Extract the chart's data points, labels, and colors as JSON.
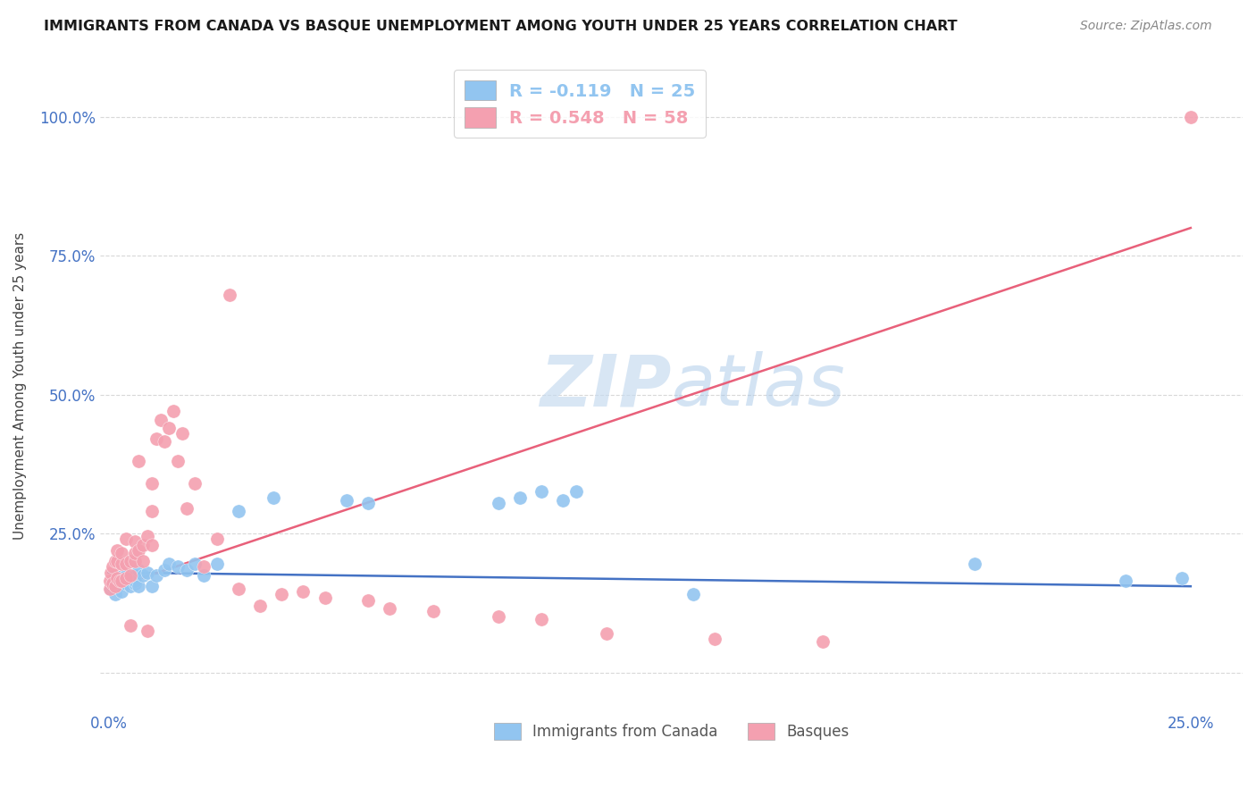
{
  "title": "IMMIGRANTS FROM CANADA VS BASQUE UNEMPLOYMENT AMONG YOUTH UNDER 25 YEARS CORRELATION CHART",
  "source": "Source: ZipAtlas.com",
  "ylabel": "Unemployment Among Youth under 25 years",
  "yticks": [
    0.0,
    0.25,
    0.5,
    0.75,
    1.0
  ],
  "ytick_labels": [
    "",
    "25.0%",
    "50.0%",
    "75.0%",
    "100.0%"
  ],
  "xticks": [
    0.0,
    0.05,
    0.1,
    0.15,
    0.2,
    0.25
  ],
  "xtick_labels": [
    "0.0%",
    "",
    "",
    "",
    "",
    "25.0%"
  ],
  "xlim": [
    -0.002,
    0.262
  ],
  "ylim": [
    -0.07,
    1.1
  ],
  "blue_color": "#92C5F0",
  "pink_color": "#F4A0B0",
  "blue_line_color": "#4472C4",
  "pink_line_color": "#E8607A",
  "watermark_color": "#C8DCF0",
  "background_color": "#ffffff",
  "grid_color": "#d8d8d8",
  "title_color": "#1a1a1a",
  "tick_label_color": "#4472c4",
  "ylabel_color": "#444444",
  "source_color": "#888888",
  "blue_scatter_x": [
    0.0005,
    0.001,
    0.001,
    0.0015,
    0.002,
    0.002,
    0.002,
    0.003,
    0.003,
    0.003,
    0.004,
    0.004,
    0.005,
    0.005,
    0.006,
    0.006,
    0.006,
    0.007,
    0.007,
    0.008,
    0.009,
    0.01,
    0.011,
    0.013,
    0.014,
    0.016,
    0.018,
    0.02,
    0.022,
    0.025,
    0.03,
    0.038,
    0.055,
    0.06,
    0.09,
    0.095,
    0.1,
    0.105,
    0.108,
    0.135,
    0.2,
    0.235,
    0.248
  ],
  "blue_scatter_y": [
    0.15,
    0.16,
    0.155,
    0.14,
    0.16,
    0.17,
    0.155,
    0.165,
    0.17,
    0.145,
    0.175,
    0.16,
    0.17,
    0.155,
    0.16,
    0.175,
    0.165,
    0.185,
    0.155,
    0.175,
    0.18,
    0.155,
    0.175,
    0.185,
    0.195,
    0.19,
    0.185,
    0.195,
    0.175,
    0.195,
    0.29,
    0.315,
    0.31,
    0.305,
    0.305,
    0.315,
    0.325,
    0.31,
    0.325,
    0.14,
    0.195,
    0.165,
    0.17
  ],
  "pink_scatter_x": [
    0.0003,
    0.0004,
    0.0005,
    0.001,
    0.001,
    0.0015,
    0.0015,
    0.002,
    0.002,
    0.002,
    0.0025,
    0.003,
    0.003,
    0.003,
    0.004,
    0.004,
    0.004,
    0.005,
    0.005,
    0.005,
    0.006,
    0.006,
    0.006,
    0.007,
    0.007,
    0.008,
    0.008,
    0.009,
    0.009,
    0.01,
    0.01,
    0.01,
    0.011,
    0.012,
    0.013,
    0.014,
    0.015,
    0.016,
    0.017,
    0.018,
    0.02,
    0.022,
    0.025,
    0.028,
    0.03,
    0.035,
    0.04,
    0.045,
    0.05,
    0.06,
    0.065,
    0.075,
    0.09,
    0.1,
    0.115,
    0.14,
    0.165,
    0.25
  ],
  "pink_scatter_y": [
    0.15,
    0.165,
    0.18,
    0.16,
    0.19,
    0.155,
    0.2,
    0.17,
    0.2,
    0.22,
    0.165,
    0.165,
    0.195,
    0.215,
    0.17,
    0.195,
    0.24,
    0.175,
    0.2,
    0.085,
    0.2,
    0.235,
    0.215,
    0.38,
    0.22,
    0.2,
    0.23,
    0.245,
    0.075,
    0.23,
    0.29,
    0.34,
    0.42,
    0.455,
    0.415,
    0.44,
    0.47,
    0.38,
    0.43,
    0.295,
    0.34,
    0.19,
    0.24,
    0.68,
    0.15,
    0.12,
    0.14,
    0.145,
    0.135,
    0.13,
    0.115,
    0.11,
    0.1,
    0.095,
    0.07,
    0.06,
    0.055,
    1.0
  ],
  "blue_trend_x0": 0.0,
  "blue_trend_y0": 0.18,
  "blue_trend_x1": 0.25,
  "blue_trend_y1": 0.155,
  "pink_trend_x0": 0.0,
  "pink_trend_y0": 0.15,
  "pink_trend_x1": 0.25,
  "pink_trend_y1": 0.8
}
